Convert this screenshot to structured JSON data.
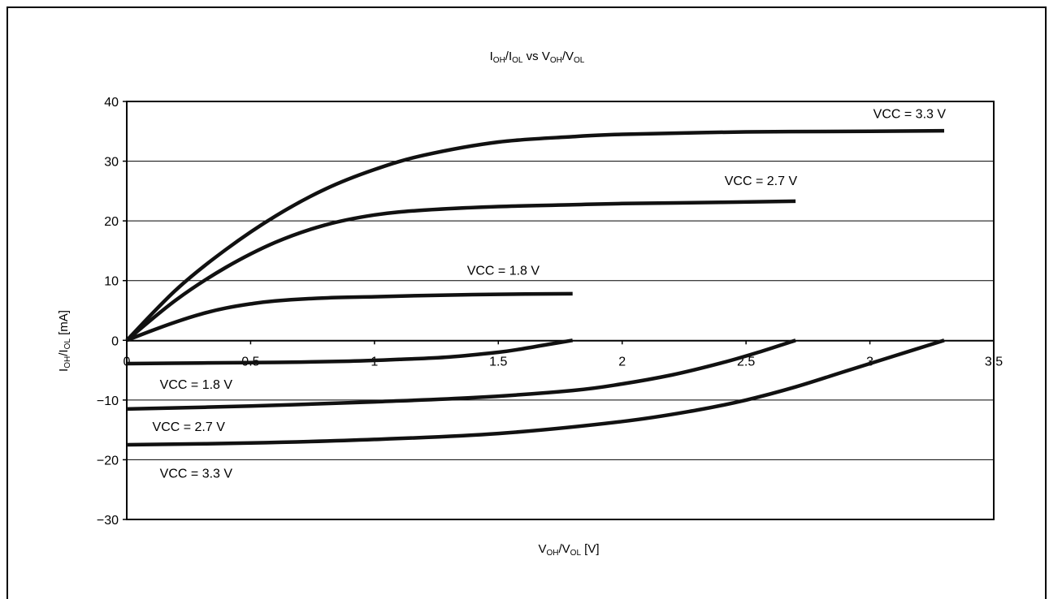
{
  "chart_data": {
    "type": "line",
    "title": {
      "main": "I",
      "s1": "OH",
      "sep1": "/I",
      "s2": "OL",
      "tail": " vs V",
      "s3": "OH",
      "sep2": "/V",
      "s4": "OL"
    },
    "xlabel": {
      "main": "V",
      "s1": "OH",
      "sep": "/V",
      "s2": "OL",
      "tail": " [V]"
    },
    "ylabel": {
      "main": "I",
      "s1": "OH",
      "sep": "/I",
      "s2": "OL",
      "tail": " [mA]"
    },
    "xlim": [
      0,
      3.5
    ],
    "ylim": [
      -30,
      40
    ],
    "xticks": [
      {
        "v": 0,
        "label": "0"
      },
      {
        "v": 0.5,
        "label": "0.5"
      },
      {
        "v": 1,
        "label": "1"
      },
      {
        "v": 1.5,
        "label": "1.5"
      },
      {
        "v": 2,
        "label": "2"
      },
      {
        "v": 2.5,
        "label": "2.5"
      },
      {
        "v": 3,
        "label": "3"
      },
      {
        "v": 3.5,
        "label": "3.5"
      }
    ],
    "yticks": [
      {
        "v": 40,
        "label": "40"
      },
      {
        "v": 30,
        "label": "30"
      },
      {
        "v": 20,
        "label": "20"
      },
      {
        "v": 10,
        "label": "10"
      },
      {
        "v": 0,
        "label": "0"
      },
      {
        "v": -10,
        "label": "−10"
      },
      {
        "v": -20,
        "label": "−20"
      },
      {
        "v": -30,
        "label": "−30"
      }
    ],
    "grid": {
      "horizontal": true,
      "vertical": false
    },
    "series": [
      {
        "name": "VCC = 3.3 V",
        "x": [
          0,
          0.2,
          0.4,
          0.6,
          0.8,
          1.0,
          1.2,
          1.5,
          1.8,
          2.0,
          2.5,
          3.0,
          3.3
        ],
        "y": [
          0,
          8.5,
          15.2,
          20.8,
          25.3,
          28.6,
          31.0,
          33.2,
          34.1,
          34.5,
          34.9,
          35.0,
          35.1
        ]
      },
      {
        "name": "VCC = 2.7 V",
        "x": [
          0,
          0.2,
          0.4,
          0.6,
          0.8,
          1.0,
          1.2,
          1.5,
          1.8,
          2.0,
          2.4,
          2.7
        ],
        "y": [
          0,
          6.8,
          12.2,
          16.4,
          19.3,
          21.0,
          21.8,
          22.4,
          22.7,
          22.9,
          23.1,
          23.3
        ]
      },
      {
        "name": "VCC = 1.8 V",
        "x": [
          0,
          0.1,
          0.2,
          0.3,
          0.4,
          0.5,
          0.6,
          0.8,
          1.0,
          1.2,
          1.5,
          1.8
        ],
        "y": [
          0,
          1.6,
          3.1,
          4.4,
          5.4,
          6.1,
          6.6,
          7.1,
          7.3,
          7.5,
          7.7,
          7.8
        ]
      },
      {
        "name": "VCC = 1.8 V",
        "x": [
          0,
          0.3,
          0.6,
          0.9,
          1.1,
          1.3,
          1.5,
          1.6,
          1.7,
          1.8
        ],
        "y": [
          -3.9,
          -3.8,
          -3.7,
          -3.5,
          -3.2,
          -2.8,
          -2.0,
          -1.4,
          -0.7,
          0
        ]
      },
      {
        "name": "VCC = 2.7 V",
        "x": [
          0,
          0.5,
          1.0,
          1.4,
          1.8,
          2.0,
          2.2,
          2.4,
          2.55,
          2.7
        ],
        "y": [
          -11.5,
          -11.0,
          -10.3,
          -9.6,
          -8.4,
          -7.3,
          -5.8,
          -3.8,
          -2.0,
          0
        ]
      },
      {
        "name": "VCC = 3.3 V",
        "x": [
          0,
          0.5,
          1.0,
          1.5,
          2.0,
          2.3,
          2.5,
          2.7,
          2.9,
          3.1,
          3.3
        ],
        "y": [
          -17.5,
          -17.2,
          -16.6,
          -15.6,
          -13.6,
          -11.7,
          -10.0,
          -7.8,
          -5.2,
          -2.6,
          0
        ]
      }
    ],
    "labels": [
      {
        "text": "VCC = 3.3 V",
        "x": 3.16,
        "y": 37.2
      },
      {
        "text": "VCC = 2.7 V",
        "x": 2.56,
        "y": 26.0
      },
      {
        "text": "VCC = 1.8 V",
        "x": 1.52,
        "y": 11.0
      },
      {
        "text": "VCC = 1.8 V",
        "x": 0.28,
        "y": -8.1
      },
      {
        "text": "VCC = 2.7 V",
        "x": 0.25,
        "y": -15.2
      },
      {
        "text": "VCC = 3.3 V",
        "x": 0.28,
        "y": -23.0
      }
    ]
  }
}
